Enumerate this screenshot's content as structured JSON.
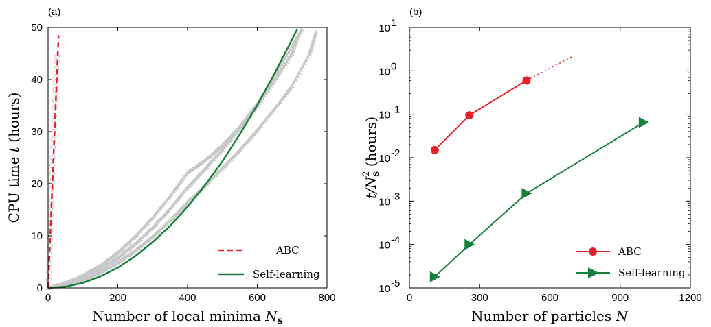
{
  "chart_data": [
    {
      "type": "line",
      "panel": "(a)",
      "xlabel": "Number of local minima N_s",
      "xlabel_main": "Number of local minima ",
      "xlabel_var": "N",
      "xlabel_sub": "s",
      "ylabel": "CPU time t (hours)",
      "ylabel_main": "CPU time ",
      "ylabel_var": "t",
      "ylabel_tail": " (hours)",
      "xlim": [
        0,
        800
      ],
      "ylim": [
        0,
        50
      ],
      "xticks": [
        0,
        200,
        400,
        600,
        800
      ],
      "yticks": [
        0,
        10,
        20,
        30,
        40,
        50
      ],
      "legend_position": "bottom-right",
      "series": [
        {
          "name": "ABC",
          "style": "dashed",
          "color": "#e8202a",
          "fit": {
            "x": [
              0,
              30
            ],
            "y": [
              0,
              48.5
            ]
          },
          "points": {
            "marker": "circle",
            "color": "#c8c8c8",
            "x": [
              1,
              2,
              3,
              4,
              4,
              5,
              6,
              7,
              7,
              8,
              9,
              10,
              10,
              11,
              12,
              12,
              13,
              14,
              15,
              16,
              17,
              18,
              19,
              20,
              21,
              22,
              23,
              24,
              25,
              26
            ],
            "y": [
              1.5,
              3,
              4.5,
              5.5,
              7,
              8,
              9.5,
              11,
              12.5,
              14,
              15.5,
              17,
              19,
              20.5,
              22,
              23.5,
              25,
              27,
              28.5,
              30,
              31.5,
              33,
              34.5,
              36,
              38,
              39.5,
              40.5,
              42,
              43.5,
              44.5
            ]
          }
        },
        {
          "name": "Self-learning",
          "style": "solid",
          "color": "#17803a",
          "fit": {
            "x": [
              0,
              50,
              100,
              150,
              200,
              250,
              300,
              350,
              400,
              450,
              500,
              550,
              600,
              650,
              700,
              715
            ],
            "y": [
              0,
              0.24,
              0.96,
              2.2,
              3.9,
              6.1,
              8.8,
              11.9,
              15.6,
              19.7,
              24.3,
              29.5,
              35.1,
              41.2,
              47.7,
              49.7
            ]
          },
          "points": {
            "marker": "triangle",
            "color": "#c8c8c8",
            "runs": [
              {
                "x": [
                  0,
                  50,
                  100,
                  150,
                  200,
                  250,
                  300,
                  350,
                  400,
                  450,
                  500,
                  550,
                  600,
                  650,
                  700,
                  730
                ],
                "y": [
                  0,
                  1.0,
                  2.4,
                  4.3,
                  6.8,
                  9.9,
                  13.5,
                  17.6,
                  22.2,
                  24.5,
                  27.4,
                  31.0,
                  35.4,
                  40.5,
                  46.4,
                  50
                ]
              },
              {
                "x": [
                  0,
                  50,
                  100,
                  150,
                  200,
                  250,
                  300,
                  350,
                  400,
                  450,
                  500,
                  550,
                  600,
                  650,
                  700,
                  720
                ],
                "y": [
                  0,
                  0.8,
                  1.9,
                  3.6,
                  5.8,
                  8.5,
                  11.6,
                  15.2,
                  19.3,
                  22.9,
                  26.6,
                  30.6,
                  35.0,
                  39.8,
                  45.0,
                  49.0
                ]
              },
              {
                "x": [
                  0,
                  50,
                  100,
                  150,
                  200,
                  250,
                  300,
                  350,
                  400,
                  450,
                  500,
                  550,
                  600,
                  650,
                  700,
                  750,
                  770
                ],
                "y": [
                  0,
                  0.5,
                  1.5,
                  3.0,
                  4.9,
                  7.2,
                  9.9,
                  13.0,
                  16.5,
                  19.7,
                  23.0,
                  26.5,
                  30.3,
                  34.4,
                  38.8,
                  45.0,
                  49.5
                ]
              }
            ]
          }
        }
      ]
    },
    {
      "type": "line",
      "panel": "(b)",
      "xlabel": "Number of particles N",
      "xlabel_main": "Number of particles ",
      "xlabel_var": "N",
      "ylabel": "t/N_s^2 (hours)",
      "ylabel_var": "t/N",
      "ylabel_sub": "s",
      "ylabel_sup": "2",
      "ylabel_tail": " (hours)",
      "xlim": [
        0,
        1200
      ],
      "ylim": [
        1e-05,
        10
      ],
      "yscale": "log",
      "xticks": [
        0,
        300,
        600,
        900,
        1200
      ],
      "ytick_exponents": [
        -5,
        -4,
        -3,
        -2,
        -1,
        0,
        1
      ],
      "ytick_base": "10",
      "legend_position": "bottom-right",
      "series": [
        {
          "name": "ABC",
          "marker": "circle",
          "color": "#e8202a",
          "x": [
            108,
            256,
            500
          ],
          "y": [
            0.015,
            0.095,
            0.6
          ],
          "extrapolation": {
            "style": "dotted",
            "x": [
              500,
              700
            ],
            "y": [
              0.6,
              2.2
            ]
          }
        },
        {
          "name": "Self-learning",
          "marker": "triangle-right",
          "color": "#17803a",
          "x": [
            108,
            256,
            500,
            1000
          ],
          "y": [
            1.8e-05,
            0.0001,
            0.0015,
            0.065
          ]
        }
      ]
    }
  ]
}
